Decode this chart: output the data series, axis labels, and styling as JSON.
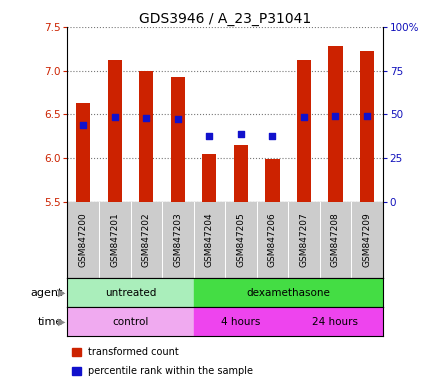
{
  "title": "GDS3946 / A_23_P31041",
  "samples": [
    "GSM847200",
    "GSM847201",
    "GSM847202",
    "GSM847203",
    "GSM847204",
    "GSM847205",
    "GSM847206",
    "GSM847207",
    "GSM847208",
    "GSM847209"
  ],
  "transformed_count": [
    6.63,
    7.12,
    7.0,
    6.93,
    6.05,
    6.15,
    5.99,
    7.12,
    7.28,
    7.22
  ],
  "percentile_rank_vals": [
    6.38,
    6.47,
    6.46,
    6.44,
    6.25,
    6.27,
    6.25,
    6.47,
    6.48,
    6.48
  ],
  "bar_bottom": 5.5,
  "ylim_left": [
    5.5,
    7.5
  ],
  "ylim_right": [
    0,
    100
  ],
  "yticks_left": [
    5.5,
    6.0,
    6.5,
    7.0,
    7.5
  ],
  "yticks_right": [
    0,
    25,
    50,
    75,
    100
  ],
  "ytick_labels_right": [
    "0",
    "25",
    "50",
    "75",
    "100%"
  ],
  "bar_color": "#cc2200",
  "dot_color": "#1111cc",
  "agent_groups": [
    {
      "label": "untreated",
      "start": 0,
      "end": 4,
      "color": "#aaeebb"
    },
    {
      "label": "dexamethasone",
      "start": 4,
      "end": 10,
      "color": "#44dd44"
    }
  ],
  "time_groups": [
    {
      "label": "control",
      "start": 0,
      "end": 4,
      "color": "#f0aaf0"
    },
    {
      "label": "4 hours",
      "start": 4,
      "end": 7,
      "color": "#ee44ee"
    },
    {
      "label": "24 hours",
      "start": 7,
      "end": 10,
      "color": "#ee44ee"
    }
  ],
  "legend_items": [
    {
      "label": "transformed count",
      "color": "#cc2200"
    },
    {
      "label": "percentile rank within the sample",
      "color": "#1111cc"
    }
  ],
  "grid_color": "#888888",
  "left_tick_color": "#cc2200",
  "right_tick_color": "#1111bb",
  "title_fontsize": 10,
  "tick_fontsize": 7.5,
  "sample_fontsize": 6.5,
  "bar_width": 0.45
}
